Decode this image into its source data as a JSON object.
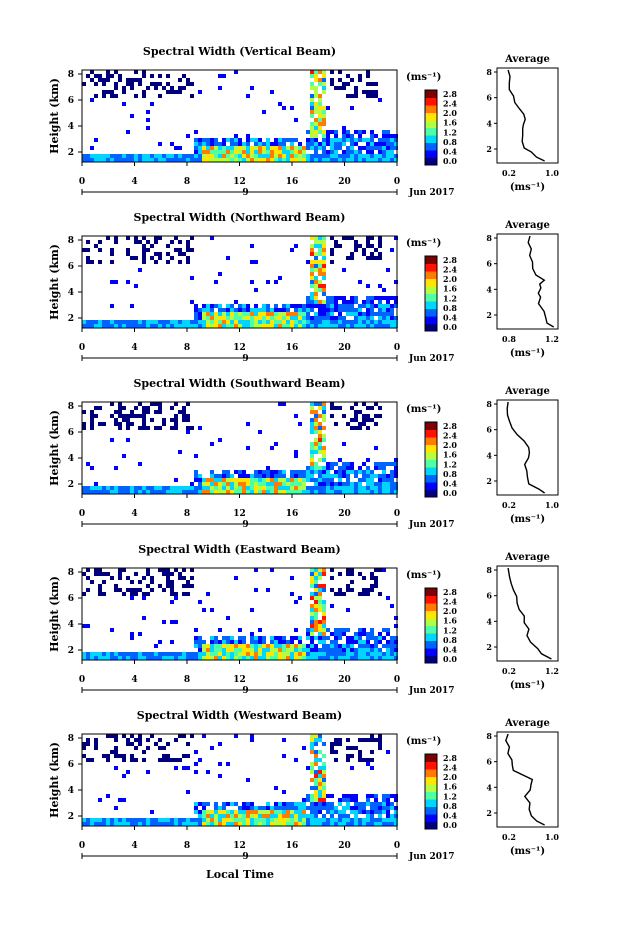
{
  "xlabel_bottom": "Local Time",
  "colorbar": {
    "unit": "(ms⁻¹)",
    "ticks": [
      "0.0",
      "0.4",
      "0.8",
      "1.2",
      "1.6",
      "2.0",
      "2.4",
      "2.8"
    ],
    "colors": [
      "#00007f",
      "#0000ff",
      "#0063ff",
      "#00d4ff",
      "#4effa8",
      "#b0ff46",
      "#ffe600",
      "#ff7c00",
      "#ff1300",
      "#7f0000"
    ]
  },
  "chart_data": [
    {
      "type": "heatmap",
      "title": "Spectral Width (Vertical Beam)",
      "ylabel": "Height (km)",
      "ylim": [
        1,
        6
      ],
      "yticks": [
        "2",
        "4",
        "6",
        "8"
      ],
      "xticks": [
        "0",
        "4",
        "8",
        "12",
        "16",
        "20",
        "0"
      ],
      "date_label": "9",
      "month_label": "Jun 2017",
      "colorbar_ticks": [
        "0.0",
        "0.4",
        "0.8",
        "1.2",
        "1.6",
        "2.0",
        "2.4",
        "2.8"
      ],
      "avg": {
        "title": "Average",
        "xticks": [
          "0.2",
          "1.0"
        ],
        "xlabel": "(ms⁻¹)",
        "yticks": [
          "2",
          "4",
          "6",
          "8"
        ],
        "profile": [
          [
            1.0,
            1.0
          ],
          [
            1.3,
            0.85
          ],
          [
            1.7,
            0.7
          ],
          [
            2.0,
            0.6
          ],
          [
            2.5,
            0.55
          ],
          [
            3.0,
            0.5
          ],
          [
            3.5,
            0.5
          ],
          [
            3.8,
            0.55
          ],
          [
            4.2,
            0.6
          ],
          [
            4.6,
            0.55
          ],
          [
            5.0,
            0.45
          ],
          [
            5.5,
            0.35
          ],
          [
            6.0,
            0.3
          ],
          [
            6.5,
            0.25
          ],
          [
            7.0,
            0.25
          ],
          [
            7.5,
            0.2
          ],
          [
            8.0,
            0.2
          ]
        ]
      }
    },
    {
      "type": "heatmap",
      "title": "Spectral Width (Northward Beam)",
      "ylabel": "Height (km)",
      "ylim": [
        1,
        6
      ],
      "yticks": [
        "2",
        "4",
        "6",
        "8"
      ],
      "xticks": [
        "0",
        "4",
        "8",
        "12",
        "16",
        "20",
        "0"
      ],
      "date_label": "9",
      "month_label": "Jun 2017",
      "colorbar_ticks": [
        "0.0",
        "0.4",
        "0.8",
        "1.2",
        "1.6",
        "2.0",
        "2.4",
        "2.8"
      ],
      "avg": {
        "title": "Average",
        "xticks": [
          "0.8",
          "1.2"
        ],
        "xlabel": "(ms⁻¹)",
        "yticks": [
          "2",
          "4",
          "6",
          "8"
        ],
        "profile": [
          [
            1.0,
            1.2
          ],
          [
            1.3,
            1.1
          ],
          [
            1.7,
            1.0
          ],
          [
            2.2,
            0.95
          ],
          [
            2.8,
            0.9
          ],
          [
            3.3,
            0.95
          ],
          [
            3.6,
            0.85
          ],
          [
            4.0,
            0.95
          ],
          [
            4.3,
            0.85
          ],
          [
            4.6,
            0.95
          ],
          [
            5.0,
            0.8
          ],
          [
            5.5,
            0.75
          ],
          [
            6.0,
            0.72
          ],
          [
            6.5,
            0.72
          ],
          [
            7.0,
            0.7
          ],
          [
            7.5,
            0.68
          ],
          [
            8.0,
            0.68
          ]
        ]
      }
    },
    {
      "type": "heatmap",
      "title": "Spectral Width (Southward Beam)",
      "ylabel": "Height (km)",
      "ylim": [
        1,
        6
      ],
      "yticks": [
        "2",
        "4",
        "6",
        "8"
      ],
      "xticks": [
        "0",
        "4",
        "8",
        "12",
        "16",
        "20",
        "0"
      ],
      "date_label": "9",
      "month_label": "Jun 2017",
      "colorbar_ticks": [
        "0.0",
        "0.4",
        "0.8",
        "1.2",
        "1.6",
        "2.0",
        "2.4",
        "2.8"
      ],
      "avg": {
        "title": "Average",
        "xticks": [
          "0.2",
          "1.0"
        ],
        "xlabel": "(ms⁻¹)",
        "yticks": [
          "2",
          "4",
          "6",
          "8"
        ],
        "profile": [
          [
            1.0,
            1.0
          ],
          [
            1.3,
            0.85
          ],
          [
            1.7,
            0.7
          ],
          [
            2.2,
            0.65
          ],
          [
            2.7,
            0.6
          ],
          [
            3.2,
            0.6
          ],
          [
            3.7,
            0.65
          ],
          [
            4.1,
            0.7
          ],
          [
            4.5,
            0.65
          ],
          [
            5.0,
            0.5
          ],
          [
            5.5,
            0.4
          ],
          [
            6.0,
            0.3
          ],
          [
            6.5,
            0.25
          ],
          [
            7.0,
            0.22
          ],
          [
            7.5,
            0.2
          ],
          [
            8.0,
            0.2
          ]
        ]
      }
    },
    {
      "type": "heatmap",
      "title": "Spectral Width (Eastward Beam)",
      "ylabel": "Height (km)",
      "ylim": [
        1,
        6
      ],
      "yticks": [
        "2",
        "4",
        "6",
        "8"
      ],
      "xticks": [
        "0",
        "4",
        "8",
        "12",
        "16",
        "20",
        "0"
      ],
      "date_label": "9",
      "month_label": "Jun 2017",
      "colorbar_ticks": [
        "0.0",
        "0.4",
        "0.8",
        "1.2",
        "1.6",
        "2.0",
        "2.4",
        "2.8"
      ],
      "avg": {
        "title": "Average",
        "xticks": [
          "0.2",
          "1.2"
        ],
        "xlabel": "(ms⁻¹)",
        "yticks": [
          "2",
          "4",
          "6",
          "8"
        ],
        "profile": [
          [
            1.0,
            1.15
          ],
          [
            1.4,
            0.95
          ],
          [
            1.8,
            0.8
          ],
          [
            2.3,
            0.7
          ],
          [
            2.8,
            0.65
          ],
          [
            3.3,
            0.6
          ],
          [
            3.8,
            0.55
          ],
          [
            4.3,
            0.5
          ],
          [
            4.8,
            0.45
          ],
          [
            5.3,
            0.42
          ],
          [
            5.8,
            0.38
          ],
          [
            6.3,
            0.33
          ],
          [
            6.8,
            0.28
          ],
          [
            7.3,
            0.24
          ],
          [
            8.0,
            0.2
          ]
        ]
      }
    },
    {
      "type": "heatmap",
      "title": "Spectral Width (Westward Beam)",
      "ylabel": "Height (km)",
      "ylim": [
        1,
        6
      ],
      "yticks": [
        "2",
        "4",
        "6",
        "8"
      ],
      "xticks": [
        "0",
        "4",
        "8",
        "12",
        "16",
        "20",
        "0"
      ],
      "date_label": "9",
      "month_label": "Jun 2017",
      "colorbar_ticks": [
        "0.0",
        "0.4",
        "0.8",
        "1.2",
        "1.6",
        "2.0",
        "2.4",
        "2.8"
      ],
      "avg": {
        "title": "Average",
        "xticks": [
          "0.2",
          "1.0"
        ],
        "xlabel": "(ms⁻¹)",
        "yticks": [
          "2",
          "4",
          "6",
          "8"
        ],
        "profile": [
          [
            1.0,
            1.0
          ],
          [
            1.3,
            0.85
          ],
          [
            1.7,
            0.75
          ],
          [
            2.2,
            0.7
          ],
          [
            2.7,
            0.65
          ],
          [
            3.2,
            0.6
          ],
          [
            3.7,
            0.65
          ],
          [
            4.1,
            0.7
          ],
          [
            4.5,
            0.75
          ],
          [
            4.8,
            0.55
          ],
          [
            5.2,
            0.35
          ],
          [
            5.6,
            0.3
          ],
          [
            6.0,
            0.3
          ],
          [
            6.5,
            0.25
          ],
          [
            7.0,
            0.22
          ],
          [
            7.5,
            0.2
          ],
          [
            8.0,
            0.2
          ]
        ]
      }
    }
  ]
}
